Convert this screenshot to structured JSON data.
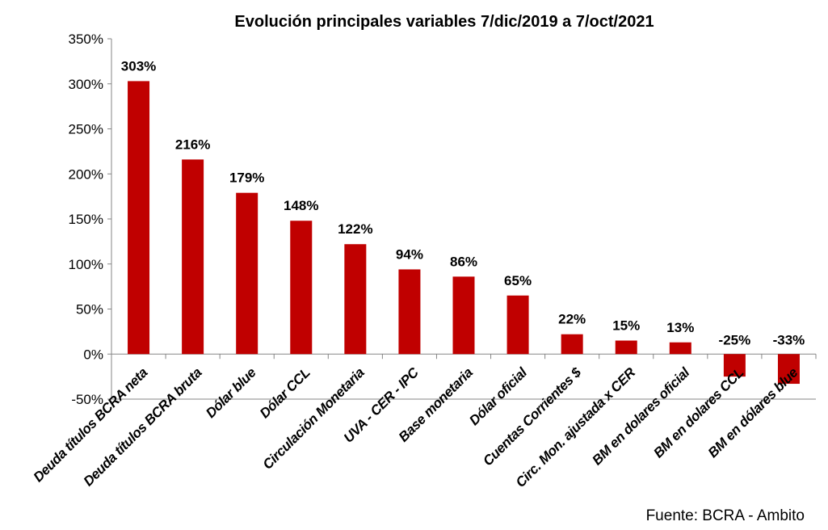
{
  "chart_data": {
    "type": "bar",
    "title": "Evolución principales variables 7/dic/2019  a 7/oct/2021",
    "categories": [
      "Deuda títulos BCRA neta",
      "Deuda títulos BCRA bruta",
      "Dólar blue",
      "Dólar CCL",
      "Circulación Monetaria",
      "UVA - CER -  IPC",
      "Base monetaria",
      "Dólar oficial",
      "Cuentas Corrientes $",
      "Circ. Mon. ajustada x CER",
      "BM en dolares oficial",
      "BM en dolares CCL",
      "BM en dólares blue"
    ],
    "values": [
      303,
      216,
      179,
      148,
      122,
      94,
      86,
      65,
      22,
      15,
      13,
      -25,
      -33
    ],
    "data_labels": [
      "303%",
      "216%",
      "179%",
      "148%",
      "122%",
      "94%",
      "86%",
      "65%",
      "22%",
      "15%",
      "13%",
      "-25%",
      "-33%"
    ],
    "ylim": [
      -50,
      350
    ],
    "yticks": [
      -50,
      0,
      50,
      100,
      150,
      200,
      250,
      300,
      350
    ],
    "ytick_labels": [
      "-50%",
      "0%",
      "50%",
      "100%",
      "150%",
      "200%",
      "250%",
      "300%",
      "350%"
    ],
    "xlabel": "",
    "ylabel": "",
    "grid": false,
    "legend": "none",
    "bar_color": "#C00000",
    "source": "Fuente: BCRA  - Ambito"
  }
}
